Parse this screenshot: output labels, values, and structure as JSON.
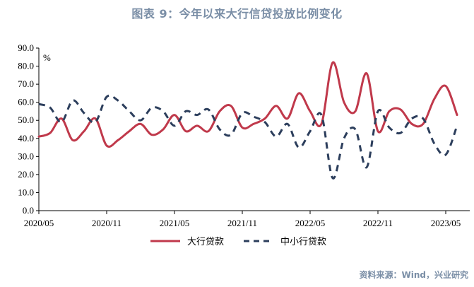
{
  "title": "图表 9：今年以来大行信贷投放比例变化",
  "source": "资料来源：Wind，兴业研究",
  "colors": {
    "large_banks": "#c0394b",
    "small_medium_banks": "#2c3e5c",
    "title": "#7a8ea6"
  },
  "chart_data": {
    "type": "line",
    "unit_label": "%",
    "ylim": [
      0,
      90
    ],
    "yticks": [
      "0.0",
      "10.0",
      "20.0",
      "30.0",
      "40.0",
      "50.0",
      "60.0",
      "70.0",
      "80.0",
      "90.0"
    ],
    "xticks": [
      "2020/05",
      "2020/11",
      "2021/05",
      "2021/11",
      "2022/05",
      "2022/11",
      "2023/05"
    ],
    "x": [
      "2020/05",
      "2020/06",
      "2020/07",
      "2020/08",
      "2020/09",
      "2020/10",
      "2020/11",
      "2020/12",
      "2021/01",
      "2021/02",
      "2021/03",
      "2021/04",
      "2021/05",
      "2021/06",
      "2021/07",
      "2021/08",
      "2021/09",
      "2021/10",
      "2021/11",
      "2021/12",
      "2022/01",
      "2022/02",
      "2022/03",
      "2022/04",
      "2022/05",
      "2022/06",
      "2022/07",
      "2022/08",
      "2022/09",
      "2022/10",
      "2022/11",
      "2022/12",
      "2023/01",
      "2023/02",
      "2023/03",
      "2023/04",
      "2023/05",
      "2023/06"
    ],
    "grid": false,
    "legend_position": "bottom",
    "series": [
      {
        "name": "大行贷款",
        "style": "solid",
        "values": [
          41,
          43,
          51,
          39,
          44,
          51,
          36,
          39,
          44,
          48,
          42,
          45,
          53,
          44,
          47,
          44,
          55,
          58,
          46,
          48,
          51,
          58,
          51,
          65,
          55,
          48,
          82,
          60,
          55,
          76,
          44,
          55,
          56,
          48,
          48,
          62,
          69,
          53
        ]
      },
      {
        "name": "中小行贷款",
        "style": "dashed",
        "values": [
          59,
          57,
          49,
          61,
          54,
          49,
          63,
          61,
          55,
          50,
          57,
          55,
          47,
          55,
          53,
          56,
          45,
          42,
          54,
          52,
          49,
          41,
          48,
          35,
          44,
          53,
          18,
          40,
          45,
          24,
          55,
          46,
          43,
          51,
          51,
          37,
          31,
          47
        ]
      }
    ]
  }
}
